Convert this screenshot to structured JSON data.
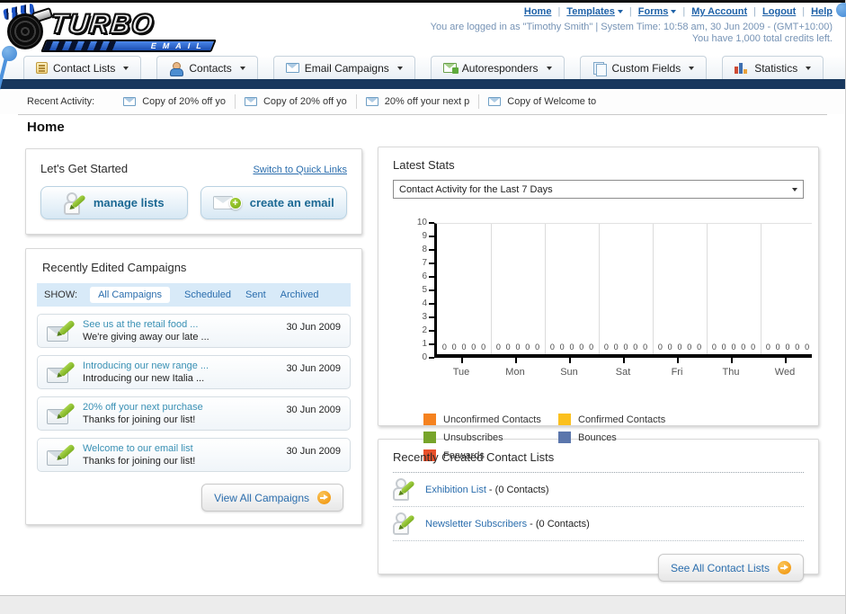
{
  "header": {
    "logo_text": "TURBO",
    "logo_sub": "EMAIL",
    "nav_links": [
      {
        "label": "Home",
        "dropdown": false
      },
      {
        "label": "Templates",
        "dropdown": true
      },
      {
        "label": "Forms",
        "dropdown": true
      },
      {
        "label": "My Account",
        "dropdown": false
      },
      {
        "label": "Logout",
        "dropdown": false
      },
      {
        "label": "Help",
        "dropdown": false
      }
    ],
    "login_line1": "You are logged in as \"Timothy Smith\" | System Time: 10:58 am, 30 Jun 2009 - (GMT+10:00)",
    "login_line2": "You have 1,000 total credits left."
  },
  "nav_tabs": [
    {
      "label": "Contact Lists",
      "icon": "contact-list"
    },
    {
      "label": "Contacts",
      "icon": "contacts"
    },
    {
      "label": "Email Campaigns",
      "icon": "envelope"
    },
    {
      "label": "Autoresponders",
      "icon": "autoresponder"
    },
    {
      "label": "Custom Fields",
      "icon": "custom-fields"
    },
    {
      "label": "Statistics",
      "icon": "statistics"
    }
  ],
  "recent_activity": {
    "label": "Recent Activity:",
    "items": [
      "Copy of 20% off yo",
      "Copy of 20% off yo",
      "20% off your next p",
      "Copy of Welcome to"
    ]
  },
  "page_title": "Home",
  "get_started": {
    "title": "Let's Get Started",
    "switch_link": "Switch to Quick Links",
    "buttons": [
      {
        "label": "manage lists"
      },
      {
        "label": "create an email"
      }
    ]
  },
  "campaigns": {
    "title": "Recently Edited Campaigns",
    "show_label": "SHOW:",
    "filters": [
      "All Campaigns",
      "Scheduled",
      "Sent",
      "Archived"
    ],
    "active_filter": "All Campaigns",
    "items": [
      {
        "title": "See us at the retail food ...",
        "subtitle": "We're giving away our late ...",
        "date": "30 Jun 2009"
      },
      {
        "title": "Introducing our new range ...",
        "subtitle": "Introducing our new Italia ...",
        "date": "30 Jun 2009"
      },
      {
        "title": "20% off your next purchase",
        "subtitle": "Thanks for joining our list!",
        "date": "30 Jun 2009"
      },
      {
        "title": "Welcome to our email list",
        "subtitle": "Thanks for joining our list!",
        "date": "30 Jun 2009"
      }
    ],
    "view_all_label": "View All Campaigns"
  },
  "stats": {
    "title": "Latest Stats",
    "dropdown_value": "Contact Activity for the Last 7 Days"
  },
  "chart_data": {
    "type": "bar",
    "title": "Contact Activity for the Last 7 Days",
    "categories": [
      "Tue",
      "Mon",
      "Sun",
      "Sat",
      "Fri",
      "Thu",
      "Wed"
    ],
    "series": [
      {
        "name": "Unconfirmed Contacts",
        "color": "#F5821F",
        "values": [
          0,
          0,
          0,
          0,
          0,
          0,
          0
        ]
      },
      {
        "name": "Confirmed Contacts",
        "color": "#FBC01E",
        "values": [
          0,
          0,
          0,
          0,
          0,
          0,
          0
        ]
      },
      {
        "name": "Unsubscribes",
        "color": "#77A42A",
        "values": [
          0,
          0,
          0,
          0,
          0,
          0,
          0
        ]
      },
      {
        "name": "Bounces",
        "color": "#5B76AC",
        "values": [
          0,
          0,
          0,
          0,
          0,
          0,
          0
        ]
      },
      {
        "name": "Forwards",
        "color": "#E8502B",
        "values": [
          0,
          0,
          0,
          0,
          0,
          0,
          0
        ]
      }
    ],
    "ylim": [
      0,
      10
    ],
    "yticks": [
      0,
      1,
      2,
      3,
      4,
      5,
      6,
      7,
      8,
      9,
      10
    ],
    "grid": "vertical-between-groups",
    "legend_position": "bottom",
    "xlabel": "",
    "ylabel": ""
  },
  "contact_lists": {
    "title": "Recently Created Contact Lists",
    "items": [
      {
        "name": "Exhibition List",
        "suffix": " - (0 Contacts)"
      },
      {
        "name": "Newsletter Subscribers",
        "suffix": " - (0 Contacts)"
      }
    ],
    "see_all_label": "See All Contact Lists"
  }
}
